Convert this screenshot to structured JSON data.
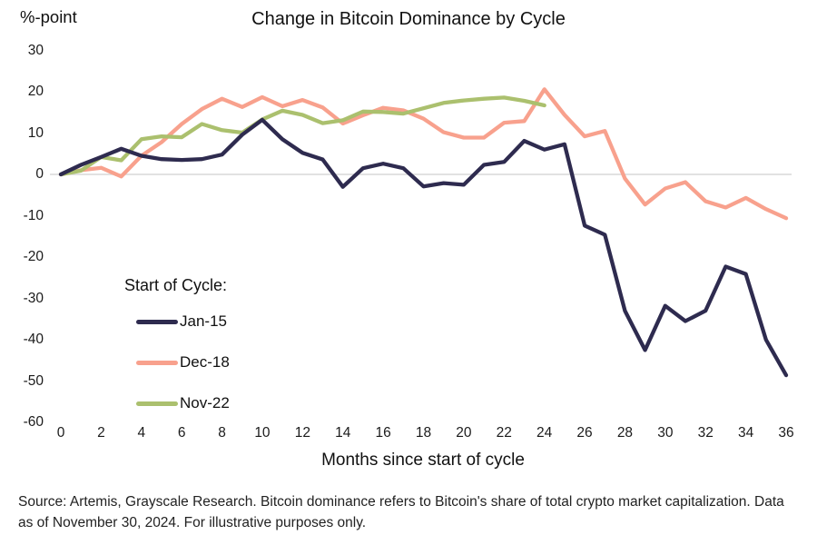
{
  "header": {
    "y_axis_unit": "%-point",
    "title": "Change in Bitcoin Dominance by Cycle"
  },
  "chart_data": {
    "type": "line",
    "title": "Change in Bitcoin Dominance by Cycle",
    "xlabel": "Months since start of cycle",
    "ylabel": "%-point",
    "xlim": [
      0,
      36
    ],
    "ylim": [
      -60,
      30
    ],
    "x_ticks": [
      0,
      2,
      4,
      6,
      8,
      10,
      12,
      14,
      16,
      18,
      20,
      22,
      24,
      26,
      28,
      30,
      32,
      34,
      36
    ],
    "y_ticks": [
      30,
      20,
      10,
      0,
      -10,
      -20,
      -30,
      -40,
      -50,
      -60
    ],
    "grid": "horizontal zero line only",
    "legend_position": "inside left middle",
    "zero_line_color": "#d9d9d9",
    "x_unit": "months since cycle start (x = array index)",
    "series": [
      {
        "name": "Jan-15",
        "color": "#2e2b4f",
        "values": [
          0,
          2.3,
          4.2,
          6.2,
          4.5,
          3.7,
          3.5,
          3.7,
          4.8,
          9.6,
          13.2,
          8.5,
          5.2,
          3.6,
          -3,
          1.5,
          2.6,
          1.5,
          -2.9,
          -2.1,
          -2.5,
          2.3,
          3,
          8.1,
          6,
          7.3,
          -12.4,
          -14.6,
          -33,
          -42.5,
          -31.8,
          -35.5,
          -33,
          -22.3,
          -24.1,
          -40,
          -48.6
        ]
      },
      {
        "name": "Dec-18",
        "color": "#f8a18d",
        "values": [
          0,
          1,
          1.6,
          -0.5,
          4.5,
          7.8,
          12.2,
          15.8,
          18.3,
          16.3,
          18.7,
          16.5,
          18,
          16.2,
          12.3,
          14.3,
          16.1,
          15.5,
          13.5,
          10.2,
          8.9,
          8.9,
          12.5,
          12.9,
          20.6,
          14.4,
          9.2,
          10.5,
          -1,
          -7.3,
          -3.4,
          -1.9,
          -6.5,
          -8,
          -5.7,
          -8.4,
          -10.6
        ]
      },
      {
        "name": "Nov-22",
        "color": "#abc06e",
        "values": [
          0,
          0.9,
          4.2,
          3.4,
          8.5,
          9.2,
          9,
          12.2,
          10.7,
          10.1,
          13.3,
          15.4,
          14.4,
          12.4,
          13.1,
          15.2,
          15.1,
          14.7,
          16,
          17.3,
          17.9,
          18.3,
          18.6,
          17.8,
          16.7
        ]
      }
    ]
  },
  "legend": {
    "title": "Start of Cycle:"
  },
  "footer": {
    "source_note": "Source: Artemis, Grayscale Research. Bitcoin dominance refers to Bitcoin's share of total crypto market capitalization. Data as of November 30, 2024. For illustrative purposes only."
  }
}
